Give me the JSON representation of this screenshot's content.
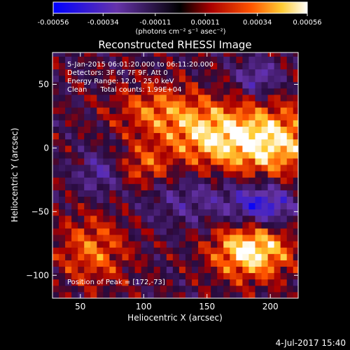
{
  "chart_data": {
    "type": "heatmap",
    "title": "Reconstructed RHESSI Image",
    "xlabel": "Heliocentric X (arcsec)",
    "ylabel": "Heliocentric Y (arcsec)",
    "xlim": [
      28,
      222
    ],
    "ylim": [
      -118,
      75
    ],
    "xticks": [
      50,
      100,
      150,
      200
    ],
    "yticks": [
      50,
      0,
      -50,
      -100
    ],
    "colorbar": {
      "ticks": [
        "-0.00056",
        "-0.00034",
        "-0.00011",
        "0.00011",
        "0.00034",
        "0.00056"
      ],
      "unit_label": "(photons cm⁻² s⁻¹ asec⁻²)",
      "range": [
        -0.00056,
        0.00056
      ]
    },
    "annotations": [
      "5-Jan-2015 06:01:20.000 to 06:11:20.000",
      "Detectors: 3F 6F 7F 9F, Att 0",
      "Energy Range: 12.0 - 25.0 keV",
      "Clean      Total counts: 1.99E+04"
    ],
    "peak_label": "Position of Peak = [172,-73]",
    "peak": {
      "x": 172,
      "y": -73
    },
    "source_blobs": [
      {
        "x": 200,
        "y": 5,
        "sx": 30,
        "sy": 20,
        "amp": 0.0005
      },
      {
        "x": 185,
        "y": -80,
        "sx": 22,
        "sy": 16,
        "amp": 0.00056
      },
      {
        "x": 150,
        "y": 10,
        "sx": 25,
        "sy": 18,
        "amp": 0.00035
      },
      {
        "x": 110,
        "y": 30,
        "sx": 25,
        "sy": 15,
        "amp": 0.00028
      },
      {
        "x": 60,
        "y": -80,
        "sx": 20,
        "sy": 20,
        "amp": 0.0003
      },
      {
        "x": 100,
        "y": -15,
        "sx": 15,
        "sy": 12,
        "amp": 0.00026
      },
      {
        "x": 65,
        "y": -20,
        "sx": 12,
        "sy": 12,
        "amp": -0.00025
      },
      {
        "x": 195,
        "y": -45,
        "sx": 18,
        "sy": 12,
        "amp": -0.00045
      },
      {
        "x": 190,
        "y": 55,
        "sx": 12,
        "sy": 10,
        "amp": -0.0003
      },
      {
        "x": 140,
        "y": -40,
        "sx": 30,
        "sy": 15,
        "amp": -0.0002
      }
    ]
  },
  "footer": {
    "date": "4-Jul-2017 15:40"
  }
}
